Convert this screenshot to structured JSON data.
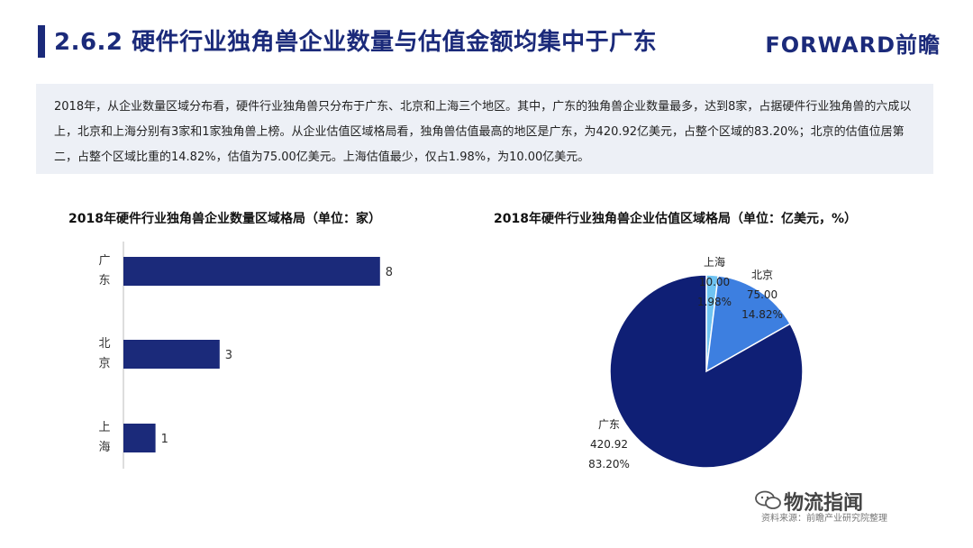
{
  "header": {
    "title": "2.6.2 硬件行业独角兽企业数量与估值金额均集中于广东",
    "logo": "FORWARD前瞻"
  },
  "summary": {
    "text": "2018年，从企业数量区域分布看，硬件行业独角兽只分布于广东、北京和上海三个地区。其中，广东的独角兽企业数量最多，达到8家，占据硬件行业独角兽的六成以上，北京和上海分别有3家和1家独角兽上榜。从企业估值区域格局看，独角兽估值最高的地区是广东，为420.92亿美元，占整个区域的83.20%；北京的估值位居第二，占整个区域比重的14.82%，估值为75.00亿美元。上海估值最少，仅占1.98%，为10.00亿美元。"
  },
  "chart_data": [
    {
      "type": "bar",
      "orientation": "horizontal",
      "title": "2018年硬件行业独角兽企业数量区域格局（单位：家）",
      "categories": [
        "广东",
        "北京",
        "上海"
      ],
      "values": [
        8,
        3,
        1
      ],
      "xlim": [
        0,
        10
      ],
      "color": "#1b2a7a",
      "grid": false
    },
    {
      "type": "pie",
      "title": "2018年硬件行业独角兽企业估值区域格局（单位：亿美元，%）",
      "labels": [
        "广东",
        "北京",
        "上海"
      ],
      "values": [
        420.92,
        75.0,
        10.0
      ],
      "value_labels": [
        "420.92",
        "75.00",
        "10.00"
      ],
      "percentages": [
        "83.20%",
        "14.82%",
        "1.98%"
      ],
      "colors": [
        "#0f1f75",
        "#3d7fe0",
        "#6fc3f2"
      ]
    }
  ],
  "footer": {
    "source": "资料来源：前瞻产业研究院整理",
    "wechat": "物流指闻"
  }
}
